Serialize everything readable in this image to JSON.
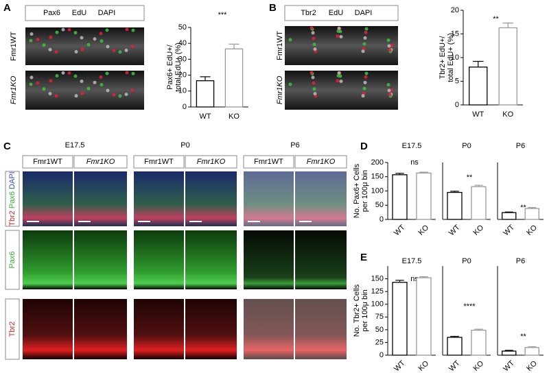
{
  "panels": {
    "A": {
      "letter": "A",
      "legend": [
        "Pax6",
        "EdU",
        "DAPI"
      ],
      "rows": [
        "Fmr1WT",
        "Fmr1KO"
      ]
    },
    "B": {
      "letter": "B",
      "legend": [
        "Tbr2",
        "EdU",
        "DAPI"
      ],
      "rows": [
        "Fmr1WT",
        "Fmr1KO"
      ]
    },
    "C": {
      "letter": "C",
      "stages": [
        "E17.5",
        "P0",
        "P6"
      ],
      "genotypes": [
        "Fmr1WT",
        "Fmr1KO"
      ],
      "rows": [
        [
          "Tbr2",
          "Pax6",
          "DAPI"
        ],
        [
          "Pax6"
        ],
        [
          "Tbr2"
        ]
      ]
    },
    "D": {
      "letter": "D"
    },
    "E": {
      "letter": "E"
    }
  },
  "chart_data": [
    {
      "type": "bar",
      "ylabel": [
        "Pax6+ EdU+/",
        "total EdU+ (%)"
      ],
      "categories": [
        "WT",
        "KO"
      ],
      "values": [
        16.5,
        36.5
      ],
      "errors": [
        2.5,
        3
      ],
      "edgecolors": [
        "#000000",
        "#999999"
      ],
      "color": "#ffffff",
      "ylim": [
        0,
        50
      ],
      "yticks": [
        0,
        10,
        20,
        30,
        40,
        50
      ],
      "annotation": "***"
    },
    {
      "type": "bar",
      "ylabel": [
        "Tbr2+ EdU+/",
        "total EdU+ (%)"
      ],
      "categories": [
        "WT",
        "KO"
      ],
      "values": [
        8,
        16.3
      ],
      "errors": [
        1.2,
        1
      ],
      "edgecolors": [
        "#000000",
        "#999999"
      ],
      "color": "#ffffff",
      "ylim": [
        0,
        20
      ],
      "yticks": [
        0,
        5,
        10,
        15,
        20
      ],
      "annotation": "**"
    },
    {
      "type": "bar",
      "title": "E17.5",
      "ylabel": [
        "No. Pax6+ Cells",
        "per 100μ bin"
      ],
      "categories": [
        "WT",
        "KO"
      ],
      "values": [
        157,
        163
      ],
      "errors": [
        5,
        3
      ],
      "edgecolors": [
        "#000000",
        "#999999"
      ],
      "color": "#ffffff",
      "ylim": [
        0,
        200
      ],
      "yticks": [
        0,
        50,
        100,
        150,
        200
      ],
      "annotation": "ns"
    },
    {
      "type": "bar",
      "title": "P0",
      "categories": [
        "WT",
        "KO"
      ],
      "values": [
        95,
        115
      ],
      "errors": [
        4,
        5
      ],
      "edgecolors": [
        "#000000",
        "#999999"
      ],
      "color": "#ffffff",
      "ylim": [
        0,
        200
      ],
      "annotation": "**"
    },
    {
      "type": "bar",
      "title": "P6",
      "categories": [
        "WT",
        "KO"
      ],
      "values": [
        24,
        38
      ],
      "errors": [
        2,
        4
      ],
      "edgecolors": [
        "#000000",
        "#999999"
      ],
      "color": "#ffffff",
      "ylim": [
        0,
        200
      ],
      "annotation": "**"
    },
    {
      "type": "bar",
      "title": "E17.5",
      "ylabel": [
        "No. Tbr2+ Cells",
        "per 100μ bin"
      ],
      "categories": [
        "WT",
        "KO"
      ],
      "values": [
        143,
        152
      ],
      "errors": [
        4,
        2
      ],
      "edgecolors": [
        "#000000",
        "#999999"
      ],
      "color": "#ffffff",
      "ylim": [
        0,
        175
      ],
      "yticks": [
        0,
        25,
        50,
        75,
        100,
        125,
        150
      ],
      "annotation": "ns"
    },
    {
      "type": "bar",
      "title": "P0",
      "categories": [
        "WT",
        "KO"
      ],
      "values": [
        35,
        49
      ],
      "errors": [
        2,
        2
      ],
      "edgecolors": [
        "#000000",
        "#999999"
      ],
      "color": "#ffffff",
      "ylim": [
        0,
        175
      ],
      "annotation": "****"
    },
    {
      "type": "bar",
      "title": "P6",
      "categories": [
        "WT",
        "KO"
      ],
      "values": [
        8,
        15
      ],
      "errors": [
        1.5,
        1.5
      ],
      "edgecolors": [
        "#000000",
        "#999999"
      ],
      "color": "#ffffff",
      "ylim": [
        0,
        175
      ],
      "annotation": "**"
    }
  ]
}
